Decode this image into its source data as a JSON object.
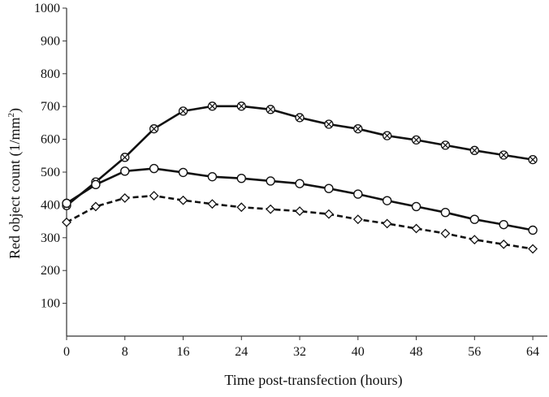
{
  "chart_data": {
    "type": "line",
    "title": "",
    "xlabel": "Time post-transfection (hours)",
    "ylabel": "Red object count (1/mm",
    "ylabel_superscript": "2",
    "ylabel_close": ")",
    "xlim": [
      0,
      66
    ],
    "ylim": [
      0,
      1000
    ],
    "xticks": [
      "0",
      "8",
      "16",
      "24",
      "32",
      "40",
      "48",
      "56",
      "64"
    ],
    "yticks": [
      "100",
      "200",
      "300",
      "400",
      "500",
      "600",
      "700",
      "800",
      "900",
      "1000"
    ],
    "grid": false,
    "legend": "none",
    "x": [
      0,
      4,
      8,
      12,
      16,
      20,
      24,
      28,
      32,
      36,
      40,
      44,
      48,
      52,
      56,
      60,
      64
    ],
    "series": [
      {
        "marker": "x-circle",
        "line_style": "solid",
        "color": "#111111",
        "values": [
          398,
          470,
          545,
          632,
          686,
          701,
          701,
          691,
          666,
          646,
          632,
          611,
          598,
          582,
          566,
          552,
          538
        ]
      },
      {
        "marker": "circle",
        "line_style": "solid",
        "color": "#111111",
        "values": [
          405,
          462,
          503,
          511,
          499,
          486,
          481,
          473,
          465,
          450,
          433,
          413,
          395,
          377,
          356,
          340,
          323
        ]
      },
      {
        "marker": "diamond",
        "line_style": "dashed",
        "color": "#111111",
        "values": [
          347,
          395,
          421,
          428,
          414,
          403,
          393,
          387,
          381,
          372,
          356,
          343,
          328,
          313,
          294,
          280,
          266
        ]
      }
    ]
  }
}
